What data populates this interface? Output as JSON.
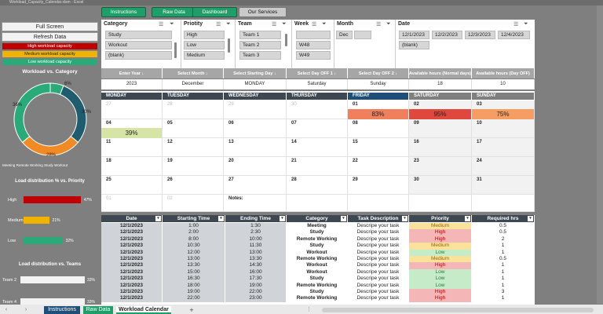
{
  "window": {
    "title": "Workload_Capacity_Calendar.xlsm - Excel"
  },
  "nav": [
    {
      "label": "Instructions"
    },
    {
      "label": "Raw Data"
    },
    {
      "label": "Dashboard"
    },
    {
      "label": "Our Services"
    }
  ],
  "left": {
    "full_screen": "Full Screen",
    "refresh": "Refresh Data",
    "legend": [
      {
        "label": "High workload capacity",
        "color": "#c00000"
      },
      {
        "label": "Medium workload capacity",
        "color": "#f0b400"
      },
      {
        "label": "Low workload capacity",
        "color": "#2aa979"
      }
    ],
    "donut_title": "Workload vs. Category",
    "donut": {
      "labels": [
        "6%",
        "30%",
        "28%",
        "36%"
      ],
      "series": [
        {
          "name": "Meeting",
          "value": 6,
          "color": "#2aa979"
        },
        {
          "name": "Remote Working",
          "value": 30,
          "color": "#1f5d6e"
        },
        {
          "name": "Study",
          "value": 28,
          "color": "#f08a24"
        },
        {
          "name": "Workout",
          "value": 36,
          "color": "#2aa979"
        }
      ],
      "legend": [
        "Meeting",
        "Remote Working",
        "Study",
        "Workout"
      ]
    },
    "priority_title": "Load distribution % vs. Priority",
    "priority": [
      {
        "label": "High",
        "value": 47,
        "text": "47%",
        "color": "#c00000"
      },
      {
        "label": "Medium",
        "value": 21,
        "text": "21%",
        "color": "#f0b400"
      },
      {
        "label": "Low",
        "value": 32,
        "text": "32%",
        "color": "#2aa979"
      }
    ],
    "teams_title": "Load distribution vs. Teams",
    "teams": [
      {
        "label": "Team 2",
        "text": "33%"
      },
      {
        "label": "Team 4",
        "text": "33%"
      }
    ]
  },
  "slicers": {
    "category": {
      "title": "Category",
      "items": [
        "Study",
        "Workout",
        "(blank)"
      ]
    },
    "priority": {
      "title": "Priotity",
      "items": [
        "High",
        "Low",
        "Medium"
      ]
    },
    "team": {
      "title": "Team",
      "items": [
        "Team 1",
        "Team 2",
        "Team 3"
      ]
    },
    "week": {
      "title": "Week",
      "items": [
        "",
        "W48",
        "W49"
      ]
    },
    "month": {
      "title": "Month",
      "items": [
        "Dec",
        ""
      ]
    },
    "date": {
      "title": "Date",
      "items": [
        "12/1/2023",
        "12/2/2023",
        "12/3/2023",
        "12/4/2023",
        "(blank)"
      ]
    }
  },
  "inputs": {
    "headers": [
      "Enter Year",
      "Select Month",
      "Select Starting Day",
      "Select Day OFF 1",
      "Select Day OFF 2",
      "Available hours (Normal days)",
      "Available hours (Day OFF)"
    ],
    "values": [
      "2023",
      "December",
      "MONDAY",
      "Saturday",
      "Sunday",
      "18",
      "10"
    ]
  },
  "calendar": {
    "days": [
      "MONDAY",
      "TUESDAY",
      "WEDNESDAY",
      "THURSDAY",
      "FRIDAY",
      "SATURDAY",
      "SUNDAY"
    ],
    "weeks": [
      [
        "27",
        "28",
        "29",
        "30",
        "01",
        "02",
        "03"
      ],
      [
        "04",
        "05",
        "06",
        "07",
        "08",
        "09",
        "10"
      ],
      [
        "11",
        "12",
        "13",
        "14",
        "15",
        "16",
        "17"
      ],
      [
        "18",
        "19",
        "20",
        "21",
        "22",
        "23",
        "24"
      ],
      [
        "25",
        "26",
        "27",
        "28",
        "29",
        "30",
        "31"
      ],
      [
        "01",
        "02",
        "Notes:",
        "",
        "",
        "",
        ""
      ]
    ],
    "badges": [
      {
        "week": 0,
        "day": 4,
        "text": "83%",
        "color": "#f07f5e"
      },
      {
        "week": 0,
        "day": 5,
        "text": "95%",
        "color": "#e0473d"
      },
      {
        "week": 0,
        "day": 6,
        "text": "75%",
        "color": "#f59d62"
      },
      {
        "week": 1,
        "day": 0,
        "text": "39%",
        "color": "#d6e5a6"
      }
    ]
  },
  "table": {
    "headers": [
      "Date",
      "Starting Time",
      "Ending Time",
      "Category",
      "Task Description",
      "Priority",
      "Required hrs"
    ],
    "rows": [
      [
        "12/1/2023",
        "1:00",
        "1:30",
        "Meeting",
        "Descripe your task",
        "Medium",
        "0.5"
      ],
      [
        "12/1/2023",
        "2:00",
        "2:30",
        "Study",
        "Descripe your task",
        "High",
        "0.5"
      ],
      [
        "12/1/2023",
        "8:00",
        "10:00",
        "Remote Working",
        "Descripe your task",
        "High",
        "2"
      ],
      [
        "12/1/2023",
        "10:30",
        "11:30",
        "Study",
        "Descripe your task",
        "Medium",
        "1"
      ],
      [
        "12/1/2023",
        "12:00",
        "13:00",
        "Workout",
        "Descripe your task",
        "Low",
        "1"
      ],
      [
        "12/1/2023",
        "13:00",
        "13:30",
        "Remote Working",
        "Descripe your task",
        "Medium",
        "0.5"
      ],
      [
        "12/1/2023",
        "13:30",
        "14:30",
        "Workout",
        "Descripe your task",
        "High",
        "1"
      ],
      [
        "12/1/2023",
        "15:00",
        "16:00",
        "Workout",
        "Descripe your task",
        "Low",
        "1"
      ],
      [
        "12/1/2023",
        "16:30",
        "17:30",
        "Study",
        "Descripe your task",
        "Low",
        "1"
      ],
      [
        "12/1/2023",
        "18:00",
        "19:00",
        "Remote Working",
        "Descripe your task",
        "Low",
        "1"
      ],
      [
        "12/1/2023",
        "19:00",
        "22:00",
        "Study",
        "Descripe your task",
        "High",
        "3"
      ],
      [
        "12/1/2023",
        "22:00",
        "23:00",
        "Remote Working",
        "Descripe your task",
        "High",
        "1"
      ]
    ]
  },
  "priority_colors": {
    "High": "#f4b6b6",
    "Medium": "#fbe29a",
    "Low": "#c6ebc9"
  },
  "sheets": [
    {
      "label": "Instructions"
    },
    {
      "label": "Raw Data"
    },
    {
      "label": "Workload Calendar"
    },
    {
      "label": "+"
    }
  ]
}
